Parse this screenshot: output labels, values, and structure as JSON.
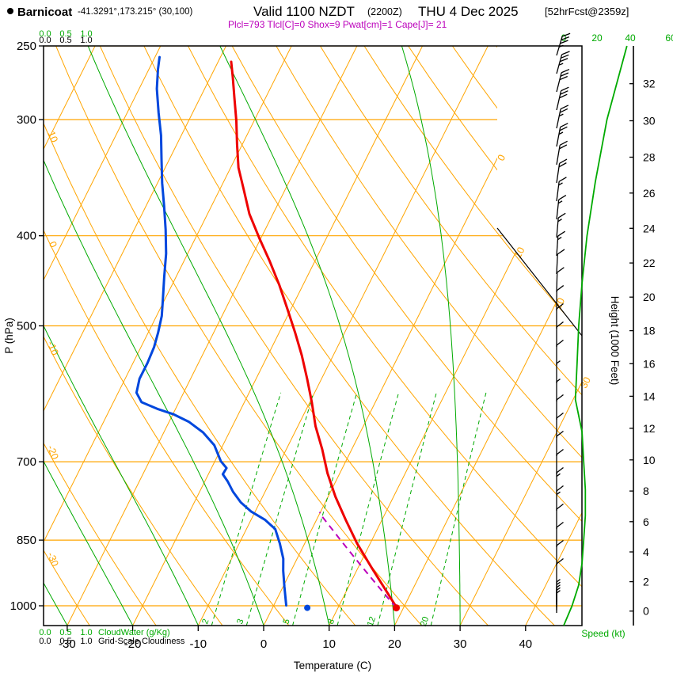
{
  "header": {
    "station": "Barnicoat",
    "coords": "-41.3291°,173.215° (30,100)",
    "valid": "Valid 1100 NZDT",
    "valid_z": "(2200Z)",
    "valid_date": "THU 4 Dec 2025",
    "fcst": "[52hrFcst@2359z]",
    "stats": "Plcl=793 Tlcl[C]=0 Shox=9 Pwat[cm]=1 Cape[J]= 21"
  },
  "axes": {
    "pressure_label": "P (hPa)",
    "temperature_label": "Temperature (C)",
    "height_label": "Height (1000 Feet)",
    "speed_label": "Speed (kt)",
    "cloudwater_label": "CloudWater (g/Kg)",
    "cloudiness_label": "Grid-Scale Cloudiness",
    "scale_ticks": [
      "0.0",
      "0.5",
      "1.0"
    ]
  },
  "colors": {
    "orange": "#FFA500",
    "green": "#00AA00",
    "red": "#EE0000",
    "blue": "#0047DD",
    "magenta": "#BB00BB"
  },
  "chart_data": {
    "type": "line",
    "variant": "skew-T log-P atmospheric sounding",
    "pressure_ticks": [
      250,
      300,
      400,
      500,
      700,
      850,
      1000
    ],
    "temperature_ticks": [
      -30,
      -20,
      -10,
      0,
      10,
      20,
      30,
      40
    ],
    "height_ticks_kft": [
      0,
      2,
      4,
      6,
      8,
      10,
      12,
      14,
      16,
      18,
      20,
      22,
      24,
      26,
      28,
      30,
      32
    ],
    "speed_ticks_kt": [
      0,
      20,
      40,
      60
    ],
    "isotherm_label_values": [
      0,
      10,
      20,
      30
    ],
    "dry_adiabat_label_values": [
      10,
      0,
      -10,
      -20,
      -30
    ],
    "mixing_ratio_lines_gkg": [
      2,
      3,
      5,
      8,
      12,
      20
    ],
    "moist_adiabat_start_temps": [
      -30,
      -20,
      -10,
      0,
      10,
      20,
      30
    ],
    "temperature_profile": [
      [
        1001,
        18.7
      ],
      [
        909,
        12.0
      ],
      [
        857,
        8.0
      ],
      [
        809,
        4.5
      ],
      [
        763,
        1.1
      ],
      [
        720,
        -1.9
      ],
      [
        679,
        -4.5
      ],
      [
        641,
        -7.3
      ],
      [
        604,
        -9.7
      ],
      [
        570,
        -12.2
      ],
      [
        538,
        -14.8
      ],
      [
        508,
        -17.6
      ],
      [
        479,
        -20.6
      ],
      [
        452,
        -23.6
      ],
      [
        426,
        -26.9
      ],
      [
        402,
        -30.3
      ],
      [
        379,
        -33.6
      ],
      [
        357,
        -36.3
      ],
      [
        338,
        -38.8
      ],
      [
        319,
        -40.8
      ],
      [
        301,
        -42.7
      ],
      [
        284,
        -44.8
      ],
      [
        270,
        -46.6
      ],
      [
        260,
        -48.0
      ]
    ],
    "dewpoint_profile": [
      [
        999,
        1.9
      ],
      [
        954,
        0.2
      ],
      [
        917,
        -1.2
      ],
      [
        890,
        -2.1
      ],
      [
        857,
        -3.8
      ],
      [
        827,
        -5.6
      ],
      [
        808,
        -7.9
      ],
      [
        792,
        -10.6
      ],
      [
        774,
        -12.9
      ],
      [
        754,
        -14.9
      ],
      [
        735,
        -16.5
      ],
      [
        722,
        -17.8
      ],
      [
        711,
        -17.7
      ],
      [
        699,
        -19.1
      ],
      [
        672,
        -21.3
      ],
      [
        651,
        -24.0
      ],
      [
        634,
        -27.0
      ],
      [
        622,
        -30.0
      ],
      [
        614,
        -32.8
      ],
      [
        604,
        -35.7
      ],
      [
        590,
        -37.2
      ],
      [
        570,
        -37.8
      ],
      [
        548,
        -37.8
      ],
      [
        527,
        -38.0
      ],
      [
        508,
        -38.5
      ],
      [
        488,
        -39.2
      ],
      [
        470,
        -40.2
      ],
      [
        443,
        -41.8
      ],
      [
        418,
        -43.3
      ],
      [
        394,
        -45.2
      ],
      [
        372,
        -47.2
      ],
      [
        351,
        -49.3
      ],
      [
        331,
        -51.2
      ],
      [
        312,
        -53.1
      ],
      [
        295,
        -55.2
      ],
      [
        278,
        -57.3
      ],
      [
        265,
        -58.6
      ],
      [
        257,
        -59.3
      ]
    ],
    "parcel": {
      "surface": [
        1005,
        18.9
      ],
      "lcl": [
        793,
        0
      ]
    },
    "surface_markers": {
      "temperature": [
        1005,
        18.9
      ],
      "dewpoint": [
        1005,
        5.3
      ]
    },
    "wind_speed_profile_kt": [
      [
        1050,
        0
      ],
      [
        1000,
        5
      ],
      [
        950,
        9
      ],
      [
        900,
        11
      ],
      [
        850,
        12
      ],
      [
        800,
        13
      ],
      [
        750,
        13
      ],
      [
        700,
        12
      ],
      [
        650,
        11
      ],
      [
        600,
        7
      ],
      [
        550,
        8
      ],
      [
        500,
        9
      ],
      [
        450,
        11
      ],
      [
        400,
        14
      ],
      [
        350,
        19
      ],
      [
        300,
        26
      ],
      [
        250,
        38
      ]
    ]
  }
}
